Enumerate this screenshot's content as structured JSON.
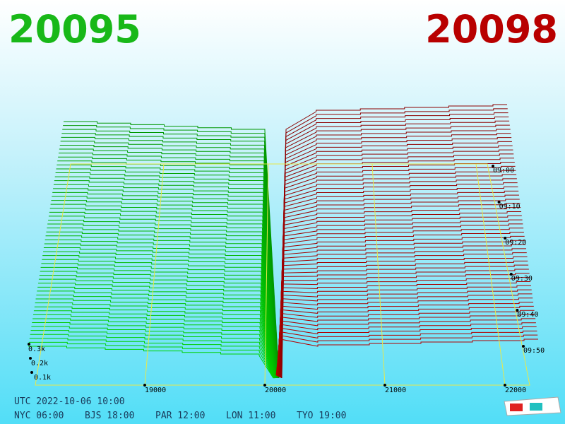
{
  "header": {
    "bid": "20095",
    "ask": "20098"
  },
  "price_axis": {
    "labels": [
      "19000",
      "20000",
      "21000",
      "22000"
    ]
  },
  "volume_axis": {
    "labels": [
      "0.3k",
      "0.2k",
      "0.1k"
    ]
  },
  "time_axis": {
    "labels": [
      "09:00",
      "09:10",
      "09:20",
      "09:30",
      "09:40",
      "09:50"
    ]
  },
  "footer": {
    "utc": "UTC 2022-10-06 10:00",
    "cities": [
      "NYC 06:00",
      "BJS 18:00",
      "PAR 12:00",
      "LON 11:00",
      "TYO 19:00"
    ]
  }
}
